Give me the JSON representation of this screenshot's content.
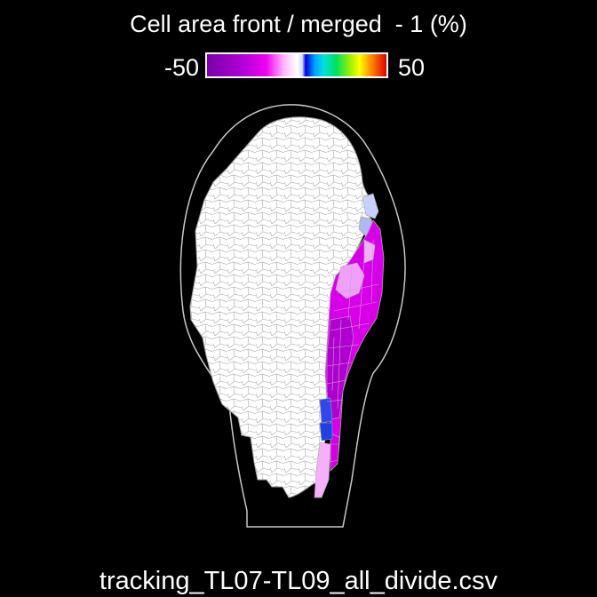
{
  "plot": {
    "title": "Cell area front / merged  - 1 (%)",
    "scale_min": "-50",
    "scale_max": "50",
    "filename": "tracking_TL07-TL09_all_divide.csv"
  },
  "colors": {
    "background": "#000000",
    "unchanged_cell": "#ffffff",
    "cell_edge": "#a0a0a0",
    "organ_outline": "#c8c8c8",
    "strong_decrease": "#b000d8",
    "decrease": "#e000f0",
    "slight_decrease": "#f0a0f8",
    "slight_increase": "#c8d0ff",
    "increase_blue": "#2040e8"
  }
}
